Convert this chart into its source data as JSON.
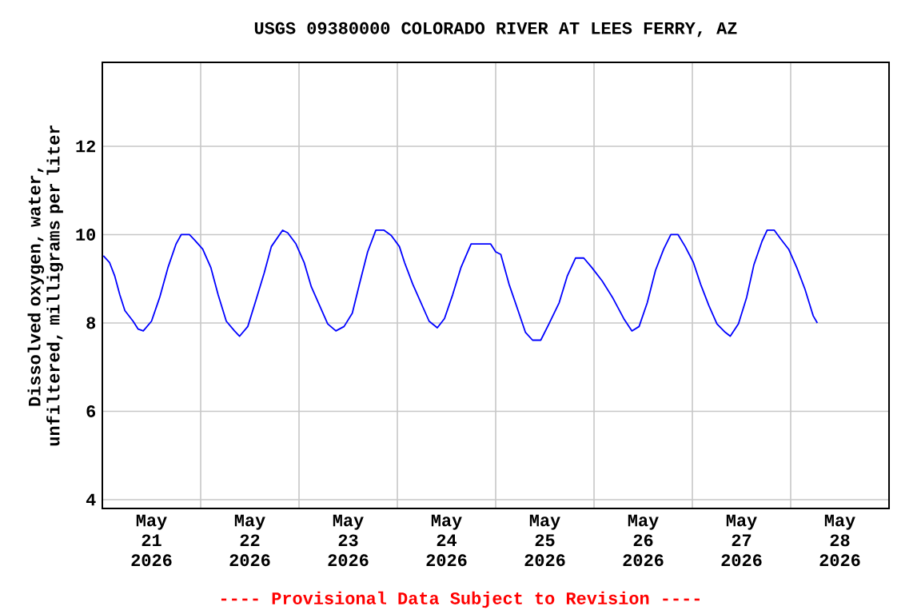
{
  "chart_data": {
    "type": "line",
    "title": "USGS 09380000 COLORADO RIVER AT LEES FERRY, AZ",
    "ylabel": "Dissolved oxygen, water, unfiltered, milligrams per liter",
    "annotations": [
      "---- Provisional Data Subject to Revision ----"
    ],
    "xlim": [
      "2026-05-21T00:00",
      "2026-05-29T00:00"
    ],
    "xticks": [
      {
        "value": "2026-05-21T12:00",
        "label": "May 21 2026"
      },
      {
        "value": "2026-05-22T00:00",
        "label": null
      },
      {
        "value": "2026-05-22T12:00",
        "label": "May 22 2026"
      },
      {
        "value": "2026-05-23T00:00",
        "label": null
      },
      {
        "value": "2026-05-23T12:00",
        "label": "May 23 2026"
      },
      {
        "value": "2026-05-24T00:00",
        "label": null
      },
      {
        "value": "2026-05-24T12:00",
        "label": "May 24 2026"
      },
      {
        "value": "2026-05-25T00:00",
        "label": null
      },
      {
        "value": "2026-05-25T12:00",
        "label": "May 25 2026"
      },
      {
        "value": "2026-05-26T00:00",
        "label": null
      },
      {
        "value": "2026-05-26T12:00",
        "label": "May 26 2026"
      },
      {
        "value": "2026-05-27T00:00",
        "label": null
      },
      {
        "value": "2026-05-27T12:00",
        "label": "May 27 2026"
      },
      {
        "value": "2026-05-28T00:00",
        "label": null
      },
      {
        "value": "2026-05-28T12:00",
        "label": "May 28 2026"
      }
    ],
    "ylim": [
      3.8,
      13.9
    ],
    "yticks": [
      4,
      6,
      8,
      10,
      12
    ],
    "grid": true,
    "marker": "none",
    "line_style": "solid",
    "series": [
      {
        "color": "#0000ff",
        "x": [
          "2026-05-21T00:15",
          "2026-05-21T01:45",
          "2026-05-21T03:00",
          "2026-05-21T04:15",
          "2026-05-21T05:30",
          "2026-05-21T07:30",
          "2026-05-21T08:45",
          "2026-05-21T10:00",
          "2026-05-21T12:00",
          "2026-05-21T14:00",
          "2026-05-21T16:00",
          "2026-05-21T18:00",
          "2026-05-21T19:15",
          "2026-05-21T21:15",
          "2026-05-21T22:30",
          "2026-05-22T00:30",
          "2026-05-22T02:30",
          "2026-05-22T04:15",
          "2026-05-22T06:15",
          "2026-05-22T08:15",
          "2026-05-22T09:30",
          "2026-05-22T11:30",
          "2026-05-22T13:30",
          "2026-05-22T15:30",
          "2026-05-22T17:15",
          "2026-05-22T20:00",
          "2026-05-22T21:15",
          "2026-05-22T23:15",
          "2026-05-23T01:15",
          "2026-05-23T03:00",
          "2026-05-23T05:00",
          "2026-05-23T07:00",
          "2026-05-23T09:00",
          "2026-05-23T11:00",
          "2026-05-23T13:00",
          "2026-05-23T14:45",
          "2026-05-23T16:45",
          "2026-05-23T18:45",
          "2026-05-23T20:45",
          "2026-05-23T22:30",
          "2026-05-24T00:30",
          "2026-05-24T01:45",
          "2026-05-24T03:45",
          "2026-05-24T05:45",
          "2026-05-24T07:45",
          "2026-05-24T09:45",
          "2026-05-24T11:30",
          "2026-05-24T13:30",
          "2026-05-24T15:30",
          "2026-05-24T18:00",
          "2026-05-24T22:45",
          "2026-05-25T00:00",
          "2026-05-25T01:15",
          "2026-05-25T03:15",
          "2026-05-25T05:15",
          "2026-05-25T07:15",
          "2026-05-25T09:00",
          "2026-05-25T11:00",
          "2026-05-25T13:00",
          "2026-05-25T15:30",
          "2026-05-25T17:30",
          "2026-05-25T19:30",
          "2026-05-25T21:30",
          "2026-05-25T23:30",
          "2026-05-26T02:00",
          "2026-05-26T04:30",
          "2026-05-26T07:15",
          "2026-05-26T09:15",
          "2026-05-26T11:00",
          "2026-05-26T13:00",
          "2026-05-26T15:00",
          "2026-05-26T17:00",
          "2026-05-26T18:45",
          "2026-05-26T20:30",
          "2026-05-26T22:15",
          "2026-05-27T00:15",
          "2026-05-27T02:00",
          "2026-05-27T04:00",
          "2026-05-27T06:00",
          "2026-05-27T08:00",
          "2026-05-27T09:15",
          "2026-05-27T11:15",
          "2026-05-27T13:15",
          "2026-05-27T15:00",
          "2026-05-27T17:00",
          "2026-05-27T18:15",
          "2026-05-27T20:00",
          "2026-05-27T21:30",
          "2026-05-27T23:30",
          "2026-05-28T01:30",
          "2026-05-28T03:30",
          "2026-05-28T05:30",
          "2026-05-28T06:30"
        ],
        "values": [
          9.52,
          9.37,
          9.07,
          8.64,
          8.28,
          8.04,
          7.86,
          7.82,
          8.04,
          8.58,
          9.25,
          9.79,
          10.0,
          10.0,
          9.88,
          9.67,
          9.25,
          8.64,
          8.04,
          7.82,
          7.7,
          7.92,
          8.52,
          9.13,
          9.73,
          10.1,
          10.04,
          9.79,
          9.37,
          8.82,
          8.4,
          7.98,
          7.82,
          7.92,
          8.22,
          8.88,
          9.61,
          10.1,
          10.1,
          9.98,
          9.73,
          9.37,
          8.88,
          8.46,
          8.04,
          7.89,
          8.1,
          8.64,
          9.25,
          9.79,
          9.79,
          9.61,
          9.55,
          8.88,
          8.34,
          7.79,
          7.61,
          7.61,
          7.98,
          8.46,
          9.07,
          9.47,
          9.47,
          9.25,
          8.95,
          8.58,
          8.1,
          7.82,
          7.92,
          8.46,
          9.19,
          9.67,
          10.0,
          10.0,
          9.73,
          9.37,
          8.88,
          8.4,
          7.98,
          7.79,
          7.7,
          7.98,
          8.58,
          9.31,
          9.85,
          10.1,
          10.1,
          9.91,
          9.67,
          9.25,
          8.76,
          8.16,
          8.0
        ]
      }
    ]
  }
}
